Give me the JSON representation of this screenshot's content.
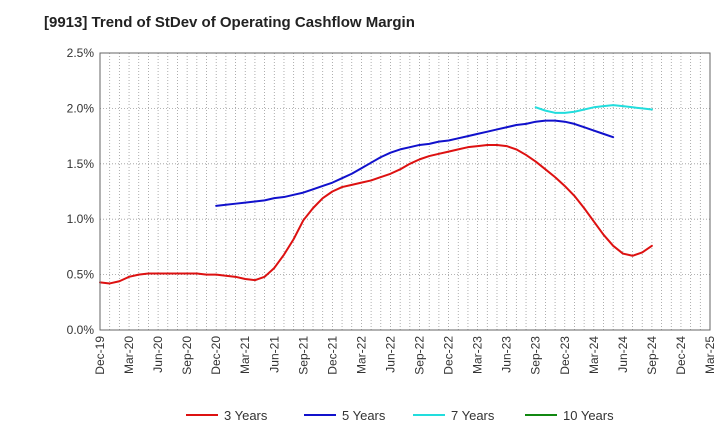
{
  "chart_data": {
    "type": "line",
    "title": "[9913]  Trend of StDev of Operating Cashflow Margin",
    "xlabel": "",
    "ylabel": "",
    "x_ticks": [
      "Dec-19",
      "Mar-20",
      "Jun-20",
      "Sep-20",
      "Dec-20",
      "Mar-21",
      "Jun-21",
      "Sep-21",
      "Dec-21",
      "Mar-22",
      "Jun-22",
      "Sep-22",
      "Dec-22",
      "Mar-23",
      "Jun-23",
      "Sep-23",
      "Dec-23",
      "Mar-24",
      "Jun-24",
      "Sep-24",
      "Dec-24",
      "Mar-25"
    ],
    "y_ticks": [
      "0.0%",
      "0.5%",
      "1.0%",
      "1.5%",
      "2.0%",
      "2.5%"
    ],
    "ylim": [
      0,
      2.5
    ],
    "y_unit": "%",
    "grid": true,
    "legend_position": "bottom",
    "series": [
      {
        "name": "3 Years",
        "color": "#dd1111",
        "points": [
          [
            "Dec-19",
            0.43
          ],
          [
            "Jan-20",
            0.42
          ],
          [
            "Feb-20",
            0.44
          ],
          [
            "Mar-20",
            0.48
          ],
          [
            "Apr-20",
            0.5
          ],
          [
            "May-20",
            0.51
          ],
          [
            "Jun-20",
            0.51
          ],
          [
            "Jul-20",
            0.51
          ],
          [
            "Aug-20",
            0.51
          ],
          [
            "Sep-20",
            0.51
          ],
          [
            "Oct-20",
            0.51
          ],
          [
            "Nov-20",
            0.5
          ],
          [
            "Dec-20",
            0.5
          ],
          [
            "Jan-21",
            0.49
          ],
          [
            "Feb-21",
            0.48
          ],
          [
            "Mar-21",
            0.46
          ],
          [
            "Apr-21",
            0.45
          ],
          [
            "May-21",
            0.48
          ],
          [
            "Jun-21",
            0.56
          ],
          [
            "Jul-21",
            0.68
          ],
          [
            "Aug-21",
            0.82
          ],
          [
            "Sep-21",
            0.99
          ],
          [
            "Oct-21",
            1.1
          ],
          [
            "Nov-21",
            1.19
          ],
          [
            "Dec-21",
            1.25
          ],
          [
            "Jan-22",
            1.29
          ],
          [
            "Feb-22",
            1.31
          ],
          [
            "Mar-22",
            1.33
          ],
          [
            "Apr-22",
            1.35
          ],
          [
            "May-22",
            1.38
          ],
          [
            "Jun-22",
            1.41
          ],
          [
            "Jul-22",
            1.45
          ],
          [
            "Aug-22",
            1.5
          ],
          [
            "Sep-22",
            1.54
          ],
          [
            "Oct-22",
            1.57
          ],
          [
            "Nov-22",
            1.59
          ],
          [
            "Dec-22",
            1.61
          ],
          [
            "Jan-23",
            1.63
          ],
          [
            "Feb-23",
            1.65
          ],
          [
            "Mar-23",
            1.66
          ],
          [
            "Apr-23",
            1.67
          ],
          [
            "May-23",
            1.67
          ],
          [
            "Jun-23",
            1.66
          ],
          [
            "Jul-23",
            1.63
          ],
          [
            "Aug-23",
            1.58
          ],
          [
            "Sep-23",
            1.52
          ],
          [
            "Oct-23",
            1.45
          ],
          [
            "Nov-23",
            1.38
          ],
          [
            "Dec-23",
            1.3
          ],
          [
            "Jan-24",
            1.21
          ],
          [
            "Feb-24",
            1.1
          ],
          [
            "Mar-24",
            0.98
          ],
          [
            "Apr-24",
            0.86
          ],
          [
            "May-24",
            0.76
          ],
          [
            "Jun-24",
            0.69
          ],
          [
            "Jul-24",
            0.67
          ],
          [
            "Aug-24",
            0.7
          ],
          [
            "Sep-24",
            0.76
          ]
        ]
      },
      {
        "name": "5 Years",
        "color": "#1111cc",
        "points": [
          [
            "Dec-20",
            1.12
          ],
          [
            "Jan-21",
            1.13
          ],
          [
            "Feb-21",
            1.14
          ],
          [
            "Mar-21",
            1.15
          ],
          [
            "Apr-21",
            1.16
          ],
          [
            "May-21",
            1.17
          ],
          [
            "Jun-21",
            1.19
          ],
          [
            "Jul-21",
            1.2
          ],
          [
            "Aug-21",
            1.22
          ],
          [
            "Sep-21",
            1.24
          ],
          [
            "Oct-21",
            1.27
          ],
          [
            "Nov-21",
            1.3
          ],
          [
            "Dec-21",
            1.33
          ],
          [
            "Jan-22",
            1.37
          ],
          [
            "Feb-22",
            1.41
          ],
          [
            "Mar-22",
            1.46
          ],
          [
            "Apr-22",
            1.51
          ],
          [
            "May-22",
            1.56
          ],
          [
            "Jun-22",
            1.6
          ],
          [
            "Jul-22",
            1.63
          ],
          [
            "Aug-22",
            1.65
          ],
          [
            "Sep-22",
            1.67
          ],
          [
            "Oct-22",
            1.68
          ],
          [
            "Nov-22",
            1.7
          ],
          [
            "Dec-22",
            1.71
          ],
          [
            "Jan-23",
            1.73
          ],
          [
            "Feb-23",
            1.75
          ],
          [
            "Mar-23",
            1.77
          ],
          [
            "Apr-23",
            1.79
          ],
          [
            "May-23",
            1.81
          ],
          [
            "Jun-23",
            1.83
          ],
          [
            "Jul-23",
            1.85
          ],
          [
            "Aug-23",
            1.86
          ],
          [
            "Sep-23",
            1.88
          ],
          [
            "Oct-23",
            1.89
          ],
          [
            "Nov-23",
            1.89
          ],
          [
            "Dec-23",
            1.88
          ],
          [
            "Jan-24",
            1.86
          ],
          [
            "Feb-24",
            1.83
          ],
          [
            "Mar-24",
            1.8
          ],
          [
            "Apr-24",
            1.77
          ],
          [
            "May-24",
            1.74
          ]
        ]
      },
      {
        "name": "7 Years",
        "color": "#22dddd",
        "points": [
          [
            "Sep-23",
            2.01
          ],
          [
            "Oct-23",
            1.98
          ],
          [
            "Nov-23",
            1.96
          ],
          [
            "Dec-23",
            1.96
          ],
          [
            "Jan-24",
            1.97
          ],
          [
            "Feb-24",
            1.99
          ],
          [
            "Mar-24",
            2.01
          ],
          [
            "Apr-24",
            2.02
          ],
          [
            "May-24",
            2.03
          ],
          [
            "Jun-24",
            2.02
          ],
          [
            "Jul-24",
            2.01
          ],
          [
            "Aug-24",
            2.0
          ],
          [
            "Sep-24",
            1.99
          ]
        ]
      },
      {
        "name": "10 Years",
        "color": "#118811",
        "points": []
      }
    ]
  }
}
